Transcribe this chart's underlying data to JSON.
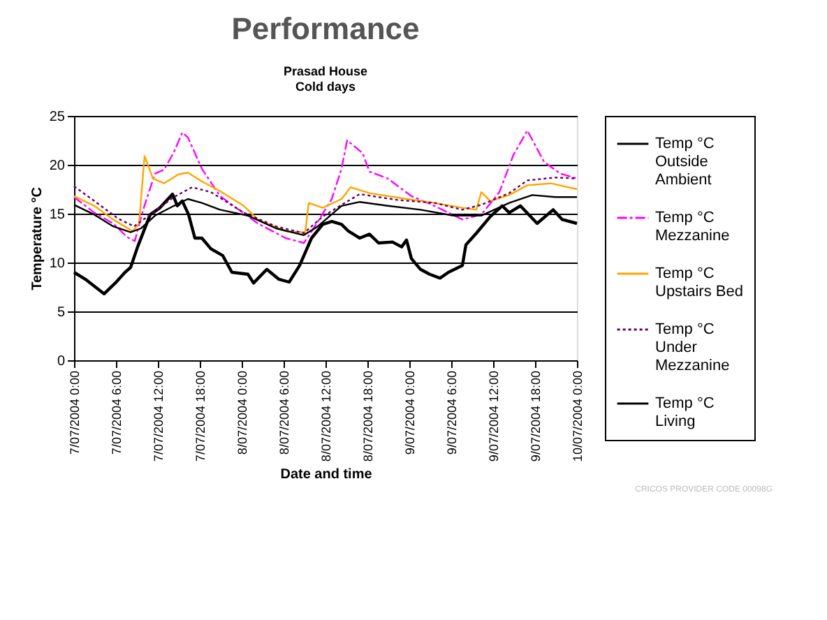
{
  "chart_data": {
    "type": "line",
    "title": "Performance",
    "subtitle": "Prasad House\nCold days",
    "xlabel": "Date and time",
    "ylabel": "Temperature °C",
    "xlim": [
      "2004-07-07T00:00",
      "2004-07-10T00:00"
    ],
    "xticks": [
      {
        "value": "2004-07-07T00:00",
        "label": "7/07/2004 0:00"
      },
      {
        "value": "2004-07-07T06:00",
        "label": "7/07/2004 6:00"
      },
      {
        "value": "2004-07-07T12:00",
        "label": "7/07/2004 12:00"
      },
      {
        "value": "2004-07-07T18:00",
        "label": "7/07/2004 18:00"
      },
      {
        "value": "2004-07-08T00:00",
        "label": "8/07/2004 0:00"
      },
      {
        "value": "2004-07-08T06:00",
        "label": "8/07/2004 6:00"
      },
      {
        "value": "2004-07-08T12:00",
        "label": "8/07/2004 12:00"
      },
      {
        "value": "2004-07-08T18:00",
        "label": "8/07/2004 18:00"
      },
      {
        "value": "2004-07-09T00:00",
        "label": "9/07/2004 0:00"
      },
      {
        "value": "2004-07-09T06:00",
        "label": "9/07/2004 6:00"
      },
      {
        "value": "2004-07-09T12:00",
        "label": "9/07/2004 12:00"
      },
      {
        "value": "2004-07-09T18:00",
        "label": "9/07/2004 18:00"
      },
      {
        "value": "2004-07-10T00:00",
        "label": "10/07/2004 0:00"
      }
    ],
    "ylim": [
      0,
      25
    ],
    "yticks": [
      0,
      5,
      10,
      15,
      20,
      25
    ],
    "grid": "y",
    "legend": "right",
    "marker": "none",
    "annotations": [
      "CRICOS PROVIDER CODE 00098G"
    ],
    "series": [
      {
        "name": "Temp °C Outside Ambient",
        "color": "#000000",
        "line_style": "solid",
        "x": [
          "2004-07-07T00:00",
          "2004-07-07T01:36",
          "2004-07-07T04:18",
          "2004-07-07T05:54",
          "2004-07-07T07:18",
          "2004-07-07T08:06",
          "2004-07-07T09:06",
          "2004-07-07T10:54",
          "2004-07-07T12:18",
          "2004-07-07T14:06",
          "2004-07-07T14:48",
          "2004-07-07T15:30",
          "2004-07-07T16:24",
          "2004-07-07T17:18",
          "2004-07-07T18:18",
          "2004-07-07T19:36",
          "2004-07-07T21:18",
          "2004-07-07T22:36",
          "2004-07-08T00:54",
          "2004-07-08T01:42",
          "2004-07-08T03:36",
          "2004-07-08T05:18",
          "2004-07-08T06:48",
          "2004-07-08T08:18",
          "2004-07-08T10:00",
          "2004-07-08T11:36",
          "2004-07-08T12:54",
          "2004-07-08T14:18",
          "2004-07-08T15:18",
          "2004-07-08T16:54",
          "2004-07-08T18:18",
          "2004-07-08T19:36",
          "2004-07-08T21:36",
          "2004-07-08T22:54",
          "2004-07-08T23:36",
          "2004-07-09T00:18",
          "2004-07-09T01:36",
          "2004-07-09T02:54",
          "2004-07-09T04:24",
          "2004-07-09T05:36",
          "2004-07-09T07:36",
          "2004-07-09T08:06",
          "2004-07-09T09:36",
          "2004-07-09T11:36",
          "2004-07-09T13:18",
          "2004-07-09T14:18",
          "2004-07-09T15:54",
          "2004-07-09T18:18",
          "2004-07-09T20:36",
          "2004-07-09T21:54",
          "2004-07-10T00:00"
        ],
        "values": [
          9.0,
          8.3,
          6.8,
          7.9,
          9.0,
          9.5,
          11.6,
          14.9,
          15.6,
          17.0,
          15.8,
          16.3,
          14.9,
          12.5,
          12.5,
          11.4,
          10.7,
          9.0,
          8.8,
          7.9,
          9.3,
          8.3,
          8.0,
          9.7,
          12.5,
          13.9,
          14.2,
          13.9,
          13.2,
          12.5,
          12.9,
          12.0,
          12.1,
          11.6,
          12.3,
          10.4,
          9.3,
          8.8,
          8.4,
          9.0,
          9.7,
          11.8,
          13.0,
          14.7,
          15.8,
          15.1,
          15.8,
          14.0,
          15.4,
          14.4,
          14.0
        ]
      },
      {
        "name": "Temp °C Mezzanine",
        "color": "#ff00ff",
        "line_style": "dashed",
        "x": [
          "2004-07-07T00:00",
          "2004-07-07T02:54",
          "2004-07-07T05:36",
          "2004-07-07T07:36",
          "2004-07-07T08:42",
          "2004-07-07T09:54",
          "2004-07-07T11:36",
          "2004-07-07T12:54",
          "2004-07-07T14:18",
          "2004-07-07T15:30",
          "2004-07-07T16:18",
          "2004-07-07T18:18",
          "2004-07-07T20:54",
          "2004-07-07T23:36",
          "2004-07-08T02:18",
          "2004-07-08T06:18",
          "2004-07-08T08:54",
          "2004-07-08T10:18",
          "2004-07-08T12:54",
          "2004-07-08T14:18",
          "2004-07-08T15:06",
          "2004-07-08T17:18",
          "2004-07-08T18:18",
          "2004-07-08T20:54",
          "2004-07-09T00:18",
          "2004-07-09T03:36",
          "2004-07-09T07:36",
          "2004-07-09T10:18",
          "2004-07-09T12:54",
          "2004-07-09T14:54",
          "2004-07-09T16:54",
          "2004-07-09T19:18",
          "2004-07-09T21:36",
          "2004-07-10T00:00"
        ],
        "values": [
          16.7,
          15.1,
          14.0,
          12.6,
          12.2,
          15.4,
          19.1,
          19.5,
          21.3,
          23.3,
          22.8,
          19.6,
          16.8,
          15.4,
          14.0,
          12.5,
          12.0,
          13.5,
          16.5,
          19.6,
          22.5,
          21.2,
          19.3,
          18.6,
          16.8,
          15.8,
          14.4,
          14.9,
          17.2,
          21.0,
          23.5,
          20.3,
          19.1,
          18.6
        ]
      },
      {
        "name": "Temp °C Upstairs Bed",
        "color": "#ffa500",
        "line_style": "solid",
        "x": [
          "2004-07-07T00:00",
          "2004-07-07T02:54",
          "2004-07-07T05:36",
          "2004-07-07T08:24",
          "2004-07-07T09:18",
          "2004-07-07T10:06",
          "2004-07-07T11:18",
          "2004-07-07T12:54",
          "2004-07-07T14:54",
          "2004-07-07T16:18",
          "2004-07-07T18:18",
          "2004-07-07T20:54",
          "2004-07-08T00:18",
          "2004-07-08T02:18",
          "2004-07-08T06:18",
          "2004-07-08T09:06",
          "2004-07-08T09:36",
          "2004-07-08T11:36",
          "2004-07-08T14:18",
          "2004-07-08T15:36",
          "2004-07-08T18:18",
          "2004-07-08T23:36",
          "2004-07-09T03:36",
          "2004-07-09T07:36",
          "2004-07-09T09:36",
          "2004-07-09T10:18",
          "2004-07-09T11:36",
          "2004-07-09T14:18",
          "2004-07-09T16:54",
          "2004-07-09T20:18",
          "2004-07-10T00:00"
        ],
        "values": [
          16.8,
          15.8,
          14.4,
          13.2,
          14.0,
          20.9,
          18.6,
          18.1,
          19.0,
          19.2,
          18.3,
          17.3,
          15.8,
          14.4,
          13.2,
          13.1,
          16.1,
          15.6,
          16.5,
          17.7,
          17.1,
          16.5,
          16.1,
          15.6,
          15.4,
          17.2,
          16.3,
          16.9,
          17.9,
          18.1,
          17.5
        ]
      },
      {
        "name": "Temp °C Under Mezzanine",
        "color": "#660066",
        "line_style": "dotted",
        "x": [
          "2004-07-07T00:00",
          "2004-07-07T02:54",
          "2004-07-07T06:18",
          "2004-07-07T08:36",
          "2004-07-07T10:54",
          "2004-07-07T14:18",
          "2004-07-07T16:54",
          "2004-07-07T19:36",
          "2004-07-08T00:18",
          "2004-07-08T04:54",
          "2004-07-08T08:54",
          "2004-07-08T11:36",
          "2004-07-08T14:18",
          "2004-07-08T16:54",
          "2004-07-08T22:18",
          "2004-07-09T03:36",
          "2004-07-09T07:36",
          "2004-07-09T10:18",
          "2004-07-09T14:18",
          "2004-07-09T16:54",
          "2004-07-09T20:54",
          "2004-07-10T00:00"
        ],
        "values": [
          17.8,
          16.3,
          14.5,
          13.7,
          14.9,
          16.7,
          17.7,
          17.2,
          15.1,
          13.7,
          13.0,
          14.7,
          15.9,
          17.0,
          16.4,
          16.1,
          15.4,
          15.9,
          17.1,
          18.4,
          18.7,
          18.6
        ]
      },
      {
        "name": "Temp °C Living",
        "color": "#000000",
        "line_style": "solid",
        "x": [
          "2004-07-07T00:00",
          "2004-07-07T02:54",
          "2004-07-07T05:36",
          "2004-07-07T08:06",
          "2004-07-07T09:36",
          "2004-07-07T11:36",
          "2004-07-07T14:18",
          "2004-07-07T16:18",
          "2004-07-07T18:18",
          "2004-07-07T20:54",
          "2004-07-08T00:54",
          "2004-07-08T04:54",
          "2004-07-08T08:54",
          "2004-07-08T10:54",
          "2004-07-08T14:18",
          "2004-07-08T16:54",
          "2004-07-08T20:54",
          "2004-07-09T01:36",
          "2004-07-09T06:18",
          "2004-07-09T10:18",
          "2004-07-09T14:18",
          "2004-07-09T17:36",
          "2004-07-09T20:54",
          "2004-07-10T00:00"
        ],
        "values": [
          15.9,
          14.9,
          13.7,
          13.1,
          13.5,
          14.8,
          15.8,
          16.5,
          16.1,
          15.4,
          14.8,
          13.5,
          12.8,
          13.7,
          15.8,
          16.2,
          15.8,
          15.4,
          14.8,
          14.8,
          16.1,
          16.9,
          16.7,
          16.7
        ]
      }
    ]
  }
}
